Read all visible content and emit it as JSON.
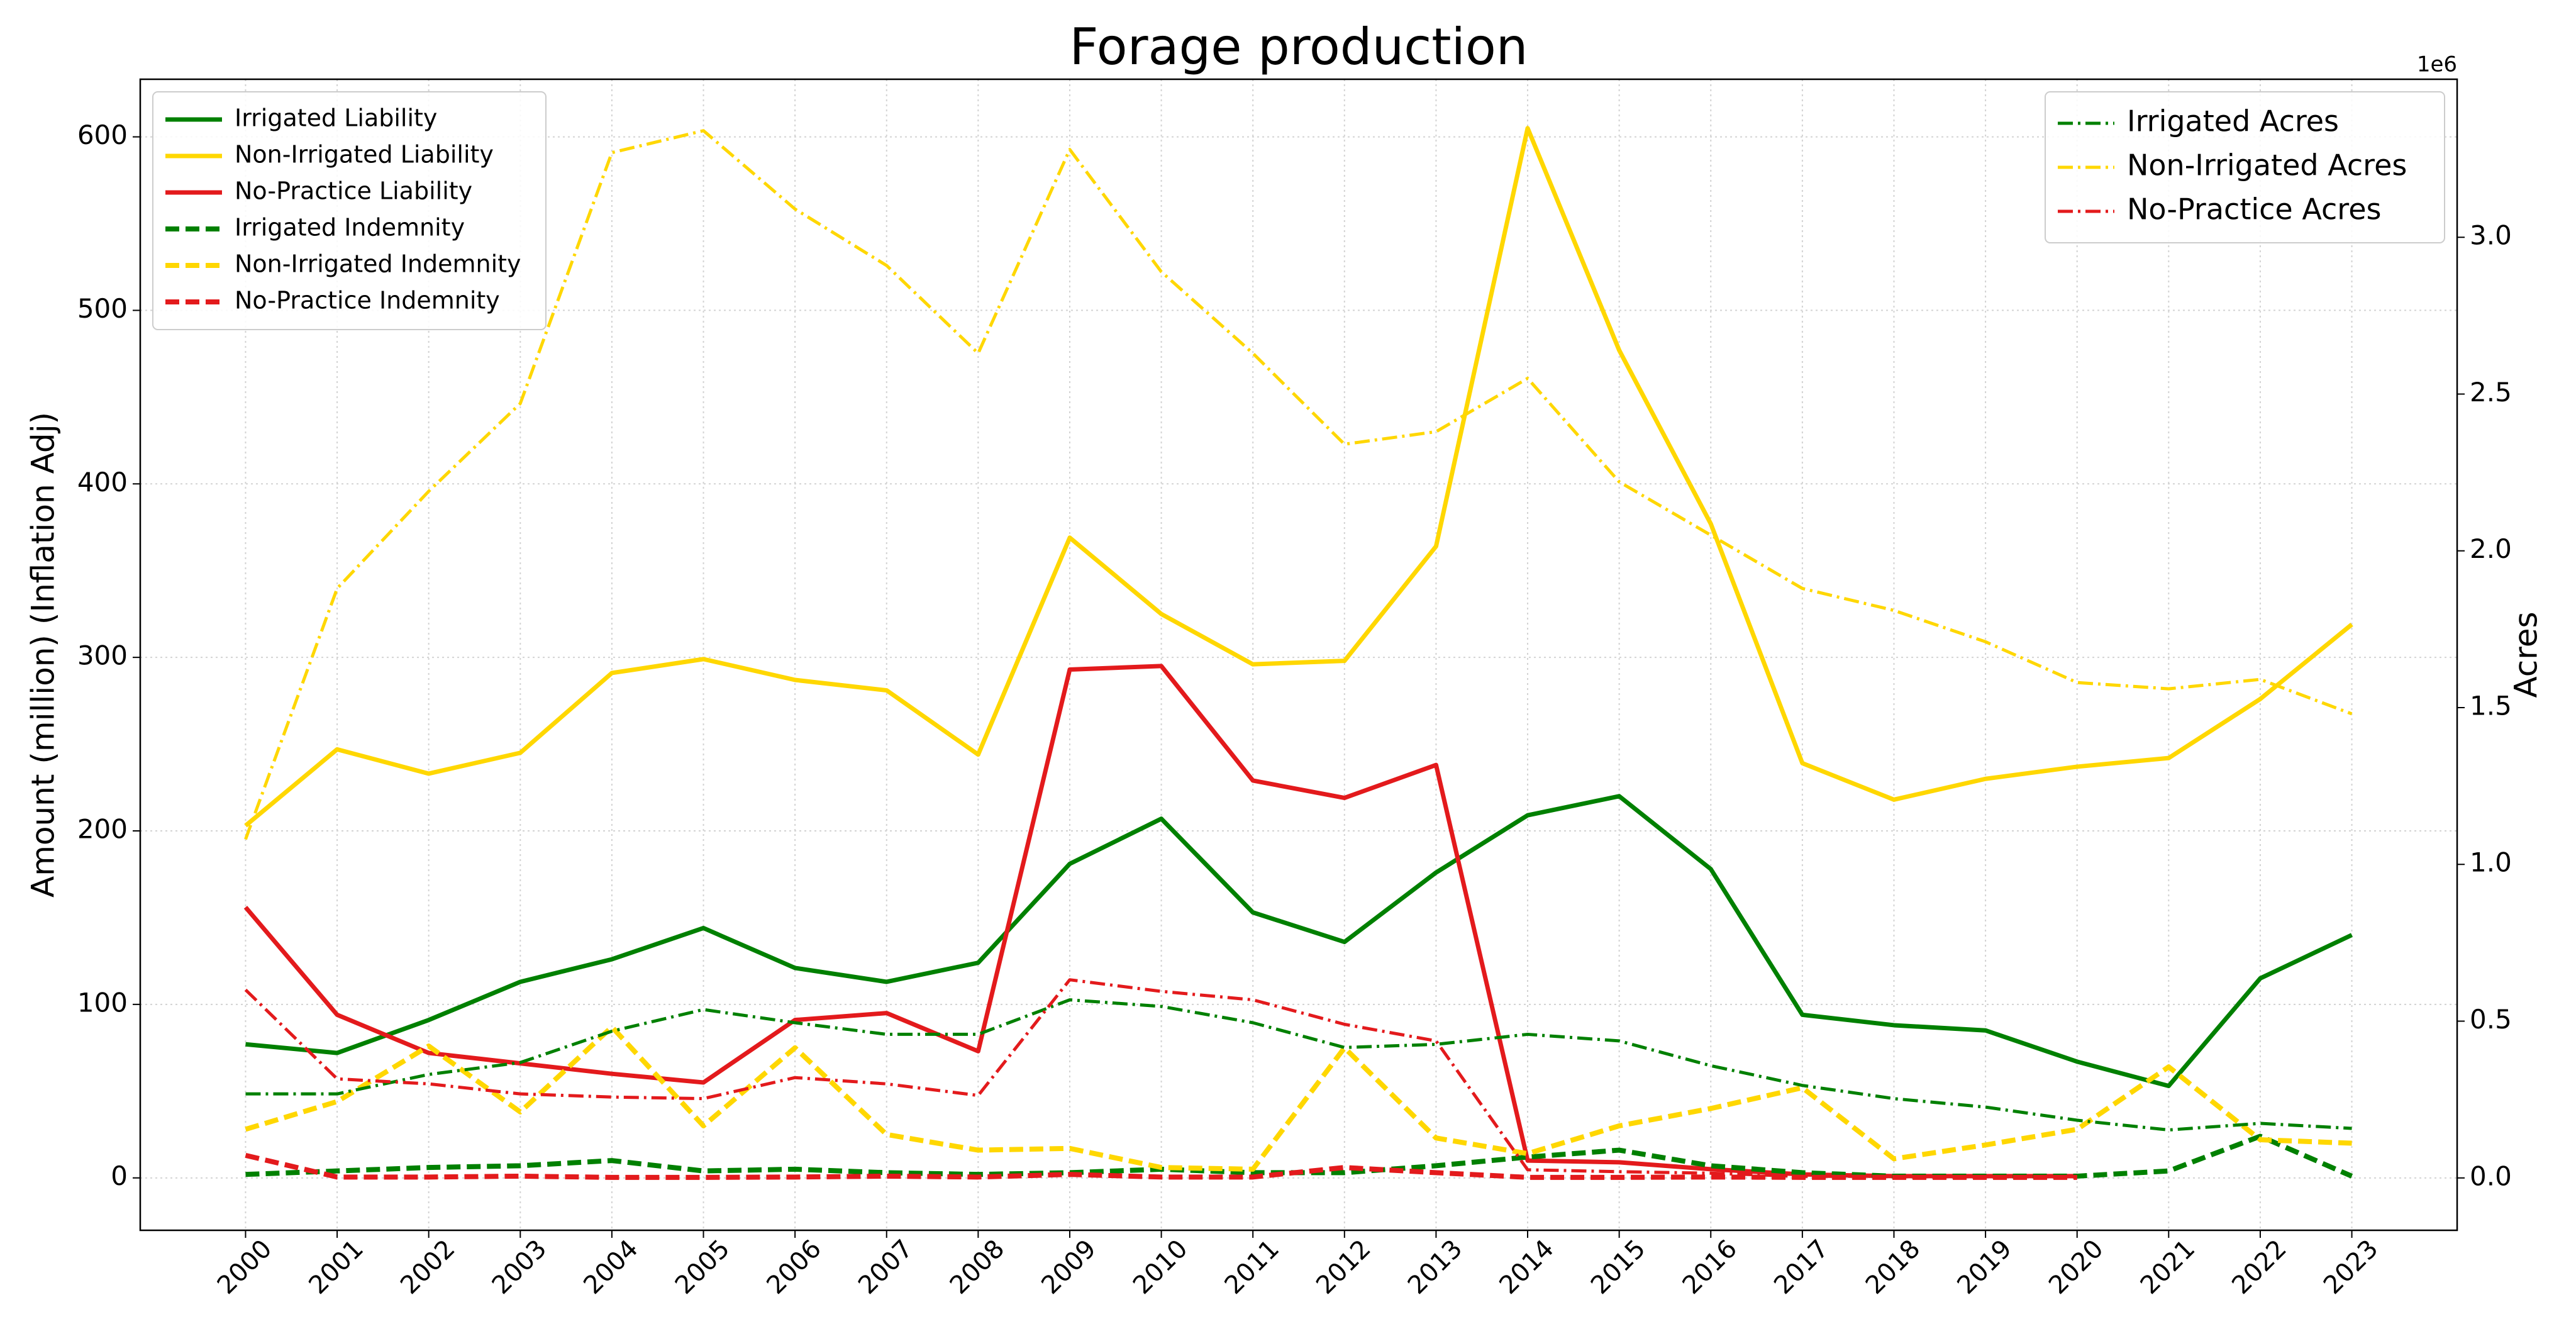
{
  "chart_data": {
    "type": "line",
    "title": "Forage production",
    "ylabel": "Amount (million) (Inflation Adj)",
    "y2label": "Acres",
    "y2_offset_label": "1e6",
    "x": [
      2000,
      2001,
      2002,
      2003,
      2004,
      2005,
      2006,
      2007,
      2008,
      2009,
      2010,
      2011,
      2012,
      2013,
      2014,
      2015,
      2016,
      2017,
      2018,
      2019,
      2020,
      2021,
      2022,
      2023
    ],
    "xticks": [
      2000,
      2001,
      2002,
      2003,
      2004,
      2005,
      2006,
      2007,
      2008,
      2009,
      2010,
      2011,
      2012,
      2013,
      2014,
      2015,
      2016,
      2017,
      2018,
      2019,
      2020,
      2021,
      2022,
      2023
    ],
    "xlim": [
      1998.85,
      2024.15
    ],
    "ylim": [
      -30.2,
      633.2
    ],
    "yticks": [
      0,
      100,
      200,
      300,
      400,
      500,
      600
    ],
    "y2lim": [
      -167000,
      3504000
    ],
    "y2ticks": [
      {
        "value": 0,
        "label": "0.0"
      },
      {
        "value": 500000,
        "label": "0.5"
      },
      {
        "value": 1000000,
        "label": "1.0"
      },
      {
        "value": 1500000,
        "label": "1.5"
      },
      {
        "value": 2000000,
        "label": "2.0"
      },
      {
        "value": 2500000,
        "label": "2.5"
      },
      {
        "value": 3000000,
        "label": "3.0"
      }
    ],
    "grid": true,
    "legend": "upper left",
    "legend2": "upper right",
    "series": [
      {
        "name": "Irrigated Liability",
        "color": "#008000",
        "linestyle": "solid",
        "values": [
          77,
          72,
          91,
          113,
          126,
          144,
          121,
          113,
          124,
          181,
          207,
          153,
          136,
          176,
          209,
          220,
          178,
          94,
          88,
          85,
          67,
          53,
          115,
          140
        ]
      },
      {
        "name": "Non-Irrigated Liability",
        "color": "#ffd700",
        "linestyle": "solid",
        "values": [
          203,
          247,
          233,
          245,
          291,
          299,
          287,
          281,
          244,
          369,
          325,
          296,
          298,
          364,
          605,
          477,
          377,
          239,
          218,
          230,
          237,
          242,
          276,
          319
        ]
      },
      {
        "name": "No-Practice Liability",
        "color": "#e31a1c",
        "linestyle": "solid",
        "values": [
          156,
          94,
          72,
          66,
          60,
          55,
          91,
          95,
          73,
          293,
          295,
          229,
          219,
          238,
          10,
          9,
          5,
          2,
          1,
          1,
          1,
          null,
          null,
          null
        ]
      },
      {
        "name": "Irrigated Indemnity",
        "color": "#008000",
        "linestyle": "dashed",
        "values": [
          2,
          4,
          6,
          7,
          10,
          4,
          5,
          3,
          2,
          3,
          5,
          3,
          3,
          7,
          12,
          16,
          7,
          3,
          1,
          1,
          1,
          4,
          24,
          1
        ]
      },
      {
        "name": "Non-Irrigated Indemnity",
        "color": "#ffd700",
        "linestyle": "dashed",
        "values": [
          28,
          44,
          76,
          38,
          87,
          30,
          75,
          25,
          16,
          17,
          6,
          5,
          75,
          23,
          14,
          30,
          40,
          52,
          11,
          19,
          28,
          64,
          22,
          20
        ]
      },
      {
        "name": "No-Practice Indemnity",
        "color": "#e31a1c",
        "linestyle": "dashed",
        "values": [
          13,
          0.5,
          0.5,
          1,
          0.3,
          0.3,
          0.5,
          1,
          0.5,
          2,
          0.5,
          0.5,
          6,
          3,
          0.3,
          0.3,
          0.5,
          0.3,
          0.3,
          0.3,
          0.3,
          null,
          null,
          null
        ]
      },
      {
        "name": "Irrigated Acres",
        "color": "#008000",
        "linestyle": "dashdot",
        "axis": "y2",
        "values": [
          268000,
          268000,
          330000,
          368000,
          468000,
          537000,
          495000,
          458000,
          458000,
          568000,
          547000,
          495000,
          416000,
          426000,
          458000,
          437000,
          358000,
          295000,
          253000,
          226000,
          184000,
          153000,
          174000,
          158000
        ]
      },
      {
        "name": "Non-Irrigated Acres",
        "color": "#ffd700",
        "linestyle": "dashdot",
        "axis": "y2",
        "values": [
          1080000,
          1880000,
          2190000,
          2470000,
          3270000,
          3340000,
          3090000,
          2910000,
          2630000,
          3280000,
          2890000,
          2630000,
          2340000,
          2380000,
          2550000,
          2220000,
          2050000,
          1880000,
          1810000,
          1710000,
          1580000,
          1560000,
          1590000,
          1480000
        ]
      },
      {
        "name": "No-Practice Acres",
        "color": "#e31a1c",
        "linestyle": "dashdot",
        "axis": "y2",
        "values": [
          600000,
          316000,
          300000,
          268000,
          258000,
          253000,
          320000,
          300000,
          263000,
          632000,
          595000,
          568000,
          490000,
          437000,
          26000,
          20000,
          15000,
          5000,
          5000,
          4000,
          4000,
          null,
          null,
          null
        ]
      }
    ]
  }
}
